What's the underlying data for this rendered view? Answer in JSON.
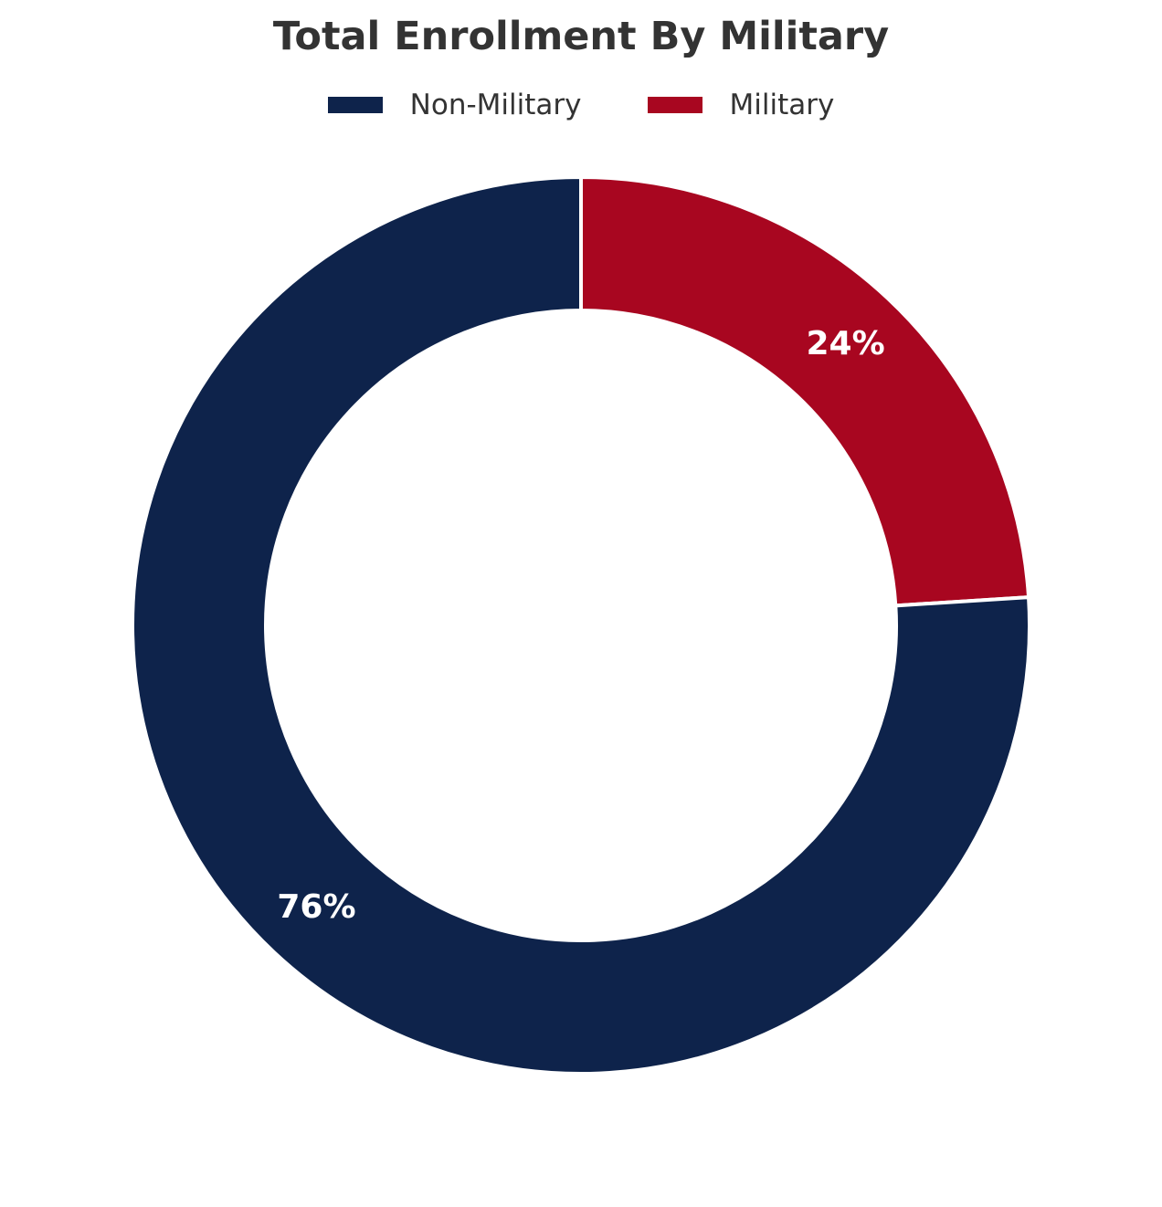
{
  "chart_data": {
    "type": "pie",
    "variant": "donut",
    "title": "Total Enrollment By Military",
    "legend_position": "top-center",
    "start_angle": "12 o'clock",
    "direction": "clockwise",
    "slices": [
      {
        "label": "Non-Military",
        "value": 76,
        "display": "76%",
        "color": "#0e234b"
      },
      {
        "label": "Military",
        "value": 24,
        "display": "24%",
        "color": "#a80620"
      }
    ]
  },
  "legend": {
    "items": [
      {
        "label": "Non-Military",
        "color": "#0e234b"
      },
      {
        "label": "Military",
        "color": "#a80620"
      }
    ]
  }
}
